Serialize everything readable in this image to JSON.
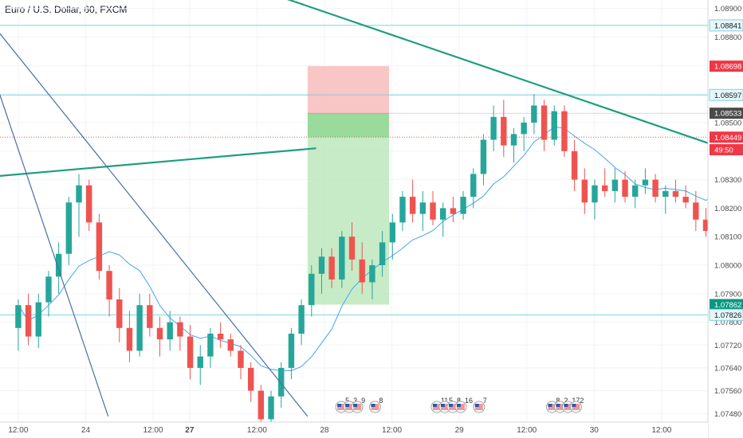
{
  "header": {
    "title": "Euro / U.S. Dollar, 60, FXCM"
  },
  "colors": {
    "up": "#26a69a",
    "down": "#ef5350",
    "trendline": "#1e9e80",
    "channel": "#4a6fa5",
    "ma": "#42a5f5",
    "level_line": "#7fd3e0",
    "stop_zone": "#f7b8b8",
    "target_zone": "#b8e6b8",
    "entry_zone": "#8fd68f",
    "tag_red": "#f23645",
    "tag_dark": "#4a4a4a",
    "tag_green": "#089981",
    "tag_level": "#e6f7fa"
  },
  "chart_data": {
    "type": "candlestick",
    "symbol": "Euro / U.S. Dollar, 60, FXCM",
    "ylim": [
      1.0745,
      1.0893
    ],
    "y_ticks": [
      "1.08900",
      "1.08800",
      "1.08700",
      "1.08600",
      "1.08500",
      "1.08400",
      "1.08300",
      "1.08200",
      "1.08100",
      "1.08000",
      "1.07900",
      "1.07800",
      "1.07720",
      "1.07640",
      "1.07560",
      "1.07480"
    ],
    "y_tick_values": [
      1.089,
      1.088,
      1.087,
      1.086,
      1.085,
      1.084,
      1.083,
      1.082,
      1.081,
      1.08,
      1.079,
      1.078,
      1.0772,
      1.0764,
      1.0756,
      1.0748
    ],
    "x_ticks": [
      "12:00",
      "24",
      "12:00",
      "27",
      "12:00",
      "28",
      "12:00",
      "29",
      "12:00",
      "30",
      "12:00"
    ],
    "x_tick_bold": [
      false,
      false,
      false,
      true,
      false,
      false,
      false,
      false,
      false,
      false,
      false
    ],
    "x_tick_bars": [
      6,
      30,
      54,
      67,
      91,
      115,
      139,
      163,
      187,
      211,
      235
    ],
    "total_bars": 252,
    "price_tags": [
      {
        "label": "1.08841",
        "value": 1.08841,
        "style": "level"
      },
      {
        "label": "1.08698",
        "value": 1.08698,
        "style": "red"
      },
      {
        "label": "1.08597",
        "value": 1.08597,
        "style": "level"
      },
      {
        "label": "1.08533",
        "value": 1.08533,
        "style": "dark"
      },
      {
        "label": "1.08449",
        "value": 1.08449,
        "style": "red"
      },
      {
        "label": "49:50",
        "value": 1.08405,
        "style": "red"
      },
      {
        "label": "1.07862",
        "value": 1.07862,
        "style": "green"
      },
      {
        "label": "1.07826",
        "value": 1.07826,
        "style": "level"
      }
    ],
    "horizontal_levels": [
      1.08841,
      1.08597,
      1.07826
    ],
    "current_price": 1.08449,
    "position": {
      "type": "short",
      "entry": 1.08533,
      "stop": 1.08698,
      "target": 1.07862,
      "start_bar": 109,
      "end_bar": 138
    },
    "trendlines": [
      {
        "name": "",
        "points": [
          [
            -2,
            1.08312
          ],
          [
            112,
            1.0841
          ]
        ],
        "color": "trendline"
      },
      {
        "name": "",
        "points": [
          [
            70,
            1.0904
          ],
          [
            254,
            1.0842
          ]
        ],
        "color": "trendline"
      },
      {
        "name": "",
        "points": [
          [
            -2,
            1.0864
          ],
          [
            38,
            1.0747
          ]
        ],
        "color": "channel"
      },
      {
        "name": "",
        "points": [
          [
            -2,
            1.0883
          ],
          [
            109,
            1.0747
          ]
        ],
        "color": "channel"
      }
    ],
    "candles": [
      [
        1.0778,
        1.0788,
        1.077,
        1.0786
      ],
      [
        1.0786,
        1.079,
        1.0772,
        1.0775
      ],
      [
        1.0775,
        1.079,
        1.0771,
        1.0787
      ],
      [
        1.0787,
        1.0798,
        1.0782,
        1.0796
      ],
      [
        1.0796,
        1.0808,
        1.079,
        1.0804
      ],
      [
        1.0804,
        1.0824,
        1.08,
        1.0822
      ],
      [
        1.0822,
        1.0832,
        1.081,
        1.0828
      ],
      [
        1.0828,
        1.083,
        1.0812,
        1.0815
      ],
      [
        1.0815,
        1.0818,
        1.0795,
        1.0798
      ],
      [
        1.0798,
        1.08,
        1.0782,
        1.0788
      ],
      [
        1.0788,
        1.0792,
        1.0773,
        1.0778
      ],
      [
        1.0778,
        1.0784,
        1.0766,
        1.077
      ],
      [
        1.077,
        1.079,
        1.0768,
        1.0786
      ],
      [
        1.0786,
        1.079,
        1.0775,
        1.0778
      ],
      [
        1.0778,
        1.0782,
        1.0768,
        1.0774
      ],
      [
        1.0774,
        1.0784,
        1.077,
        1.078
      ],
      [
        1.078,
        1.0782,
        1.077,
        1.0775
      ],
      [
        1.0775,
        1.0779,
        1.076,
        1.0764
      ],
      [
        1.0764,
        1.0772,
        1.0758,
        1.0768
      ],
      [
        1.0768,
        1.0778,
        1.0764,
        1.0776
      ],
      [
        1.0776,
        1.078,
        1.0771,
        1.0774
      ],
      [
        1.0774,
        1.0776,
        1.0768,
        1.077
      ],
      [
        1.077,
        1.0772,
        1.076,
        1.0764
      ],
      [
        1.0764,
        1.0766,
        1.0752,
        1.0756
      ],
      [
        1.0756,
        1.0758,
        1.0744,
        1.0746
      ],
      [
        1.0746,
        1.0756,
        1.0742,
        1.0754
      ],
      [
        1.0754,
        1.0766,
        1.075,
        1.0764
      ],
      [
        1.0764,
        1.0778,
        1.076,
        1.0776
      ],
      [
        1.0776,
        1.0788,
        1.0772,
        1.0786
      ],
      [
        1.0786,
        1.08,
        1.0782,
        1.0797
      ],
      [
        1.0797,
        1.0806,
        1.079,
        1.0803
      ],
      [
        1.0803,
        1.0806,
        1.0792,
        1.0795
      ],
      [
        1.0795,
        1.0812,
        1.0792,
        1.081
      ],
      [
        1.081,
        1.0815,
        1.0798,
        1.0802
      ],
      [
        1.0802,
        1.0808,
        1.079,
        1.0794
      ],
      [
        1.0794,
        1.0802,
        1.0788,
        1.08
      ],
      [
        1.08,
        1.0812,
        1.0796,
        1.0808
      ],
      [
        1.0808,
        1.0818,
        1.0802,
        1.0815
      ],
      [
        1.0815,
        1.0826,
        1.0812,
        1.0824
      ],
      [
        1.0824,
        1.083,
        1.0815,
        1.0818
      ],
      [
        1.0818,
        1.0826,
        1.0812,
        1.0822
      ],
      [
        1.0822,
        1.0826,
        1.0814,
        1.0816
      ],
      [
        1.0816,
        1.0822,
        1.081,
        1.082
      ],
      [
        1.082,
        1.0824,
        1.0815,
        1.0818
      ],
      [
        1.0818,
        1.0826,
        1.0816,
        1.0824
      ],
      [
        1.0824,
        1.0834,
        1.082,
        1.0832
      ],
      [
        1.0832,
        1.0846,
        1.0828,
        1.0844
      ],
      [
        1.0844,
        1.0856,
        1.084,
        1.0852
      ],
      [
        1.0852,
        1.0858,
        1.0838,
        1.0842
      ],
      [
        1.0842,
        1.0848,
        1.0836,
        1.0846
      ],
      [
        1.0846,
        1.0852,
        1.084,
        1.085
      ],
      [
        1.085,
        1.086,
        1.0846,
        1.0856
      ],
      [
        1.0856,
        1.0858,
        1.084,
        1.0844
      ],
      [
        1.0844,
        1.0856,
        1.0842,
        1.0854
      ],
      [
        1.0854,
        1.0856,
        1.0838,
        1.084
      ],
      [
        1.084,
        1.0844,
        1.0826,
        1.083
      ],
      [
        1.083,
        1.0834,
        1.0818,
        1.0822
      ],
      [
        1.0822,
        1.083,
        1.0816,
        1.0828
      ],
      [
        1.0828,
        1.0834,
        1.0824,
        1.0826
      ],
      [
        1.0826,
        1.0834,
        1.0822,
        1.083
      ],
      [
        1.083,
        1.0833,
        1.0822,
        1.0824
      ],
      [
        1.0824,
        1.083,
        1.082,
        1.0828
      ],
      [
        1.0828,
        1.0834,
        1.0825,
        1.083
      ],
      [
        1.083,
        1.0832,
        1.0822,
        1.0824
      ],
      [
        1.0824,
        1.0828,
        1.0818,
        1.0826
      ],
      [
        1.0826,
        1.083,
        1.0822,
        1.0824
      ],
      [
        1.0824,
        1.0828,
        1.082,
        1.0822
      ],
      [
        1.0822,
        1.0826,
        1.0812,
        1.0816
      ],
      [
        1.0816,
        1.082,
        1.081,
        1.0812
      ],
      [
        1.0812,
        1.0845,
        1.081,
        1.0843
      ],
      [
        1.0843,
        1.0856,
        1.084,
        1.0852
      ],
      [
        1.0852,
        1.086,
        1.0846,
        1.0848
      ],
      [
        1.0848,
        1.0856,
        1.0838,
        1.0844
      ]
    ],
    "candle_start_bar": 6,
    "candle_spacing": 1,
    "events": [
      {
        "bar": 121,
        "labels": [
          "5",
          "3",
          "9"
        ]
      },
      {
        "bar": 133,
        "labels": [
          "8"
        ]
      },
      {
        "bar": 155,
        "labels": [
          "11",
          "5",
          "8",
          "16"
        ]
      },
      {
        "bar": 170,
        "labels": [
          "7"
        ]
      },
      {
        "bar": 196,
        "labels": [
          "8",
          "2",
          "17",
          "2"
        ]
      }
    ]
  }
}
